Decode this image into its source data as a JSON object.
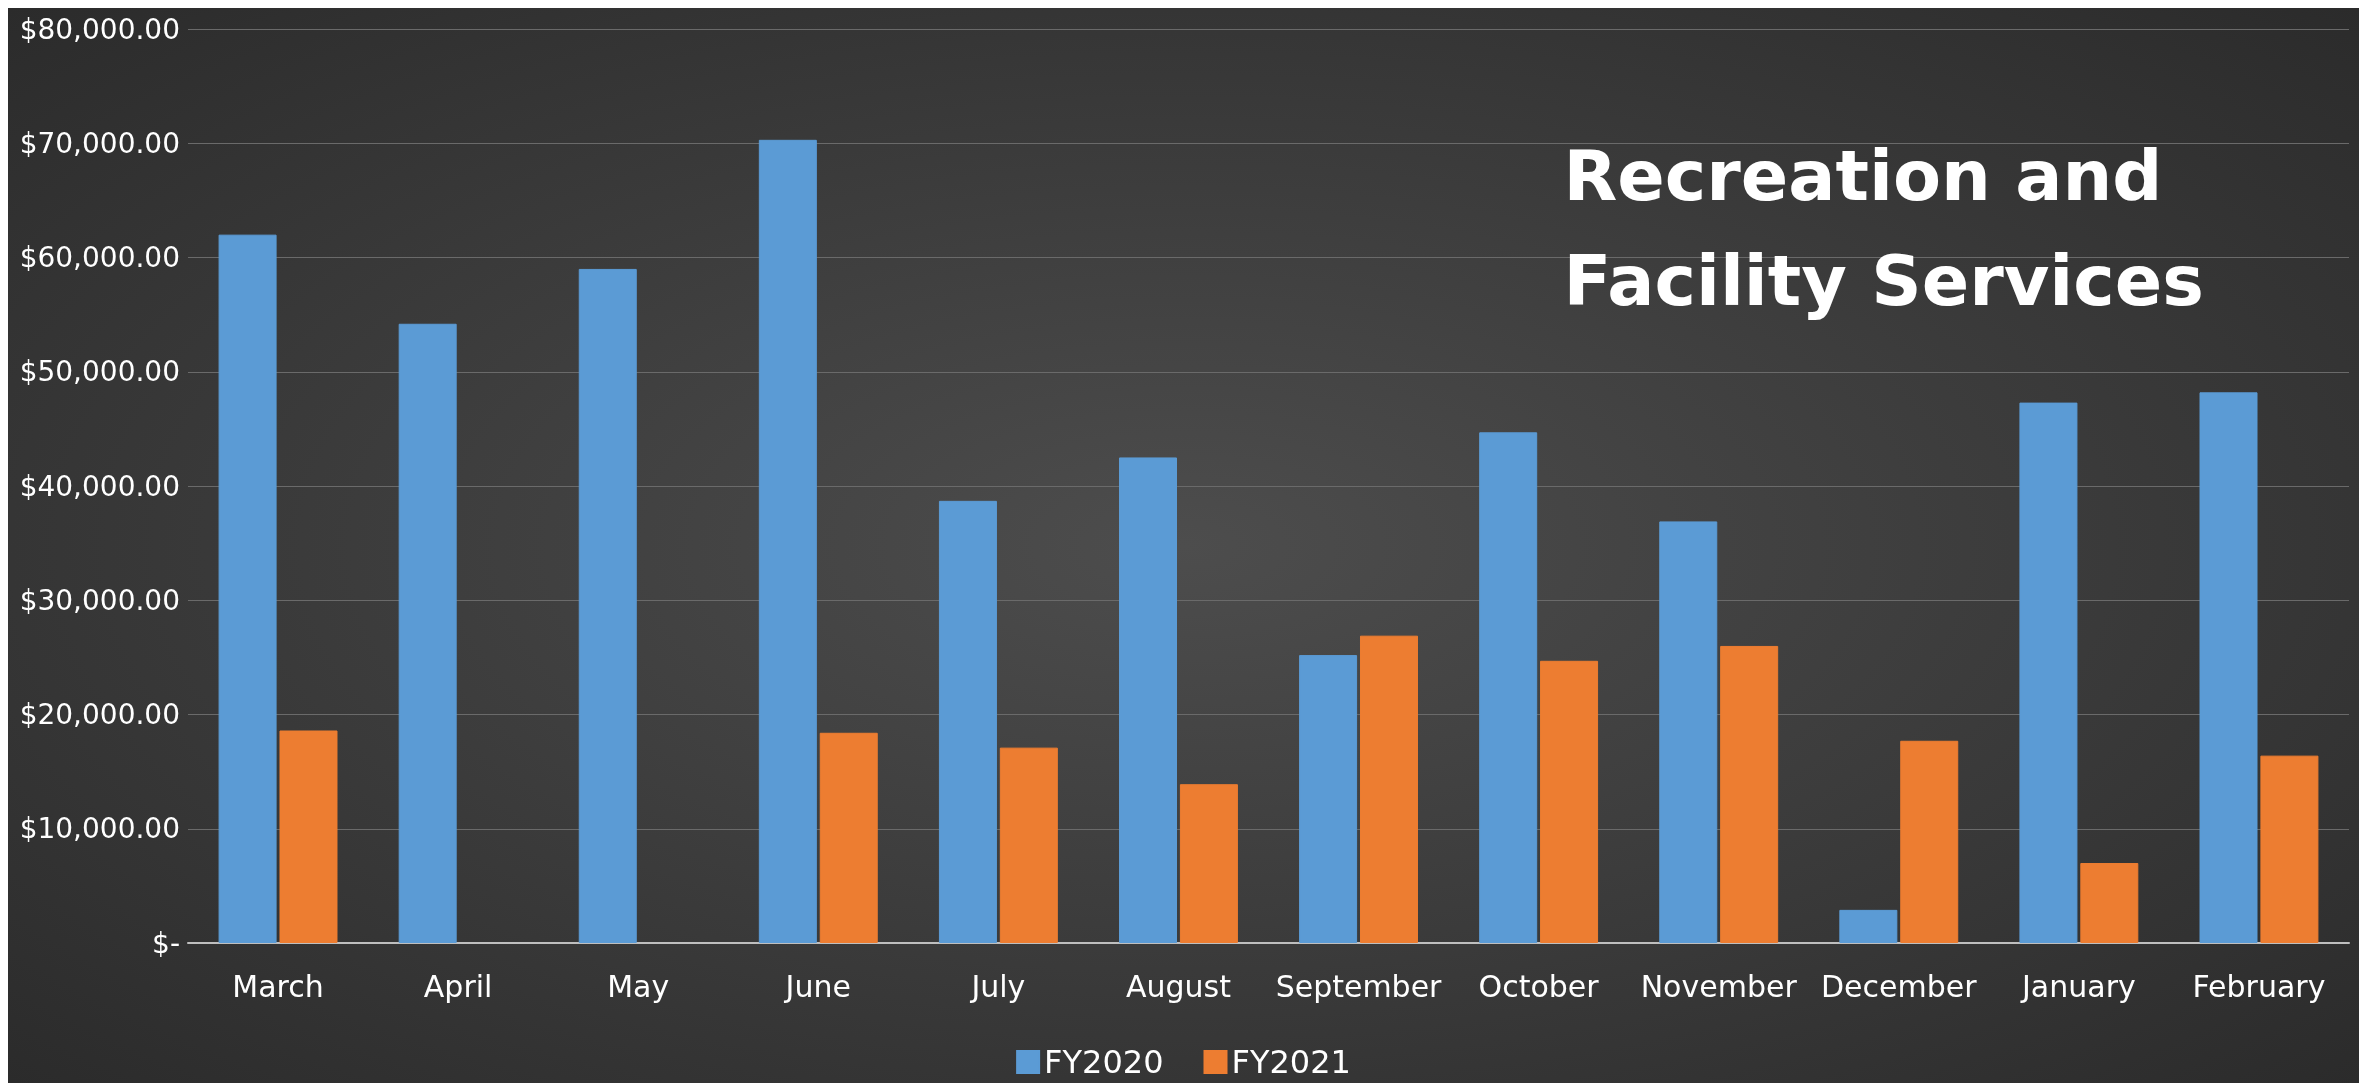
{
  "chart_data": {
    "type": "bar",
    "title": "Recreation and\nFacility Services",
    "categories": [
      "March",
      "April",
      "May",
      "June",
      "July",
      "August",
      "September",
      "October",
      "November",
      "December",
      "January",
      "February"
    ],
    "series": [
      {
        "name": "FY2020",
        "color": "#5b9bd5",
        "values": [
          62000,
          54200,
          59000,
          70300,
          38700,
          42500,
          25200,
          44700,
          36900,
          2900,
          47300,
          48200
        ]
      },
      {
        "name": "FY2021",
        "color": "#ed7d31",
        "values": [
          18600,
          null,
          null,
          18400,
          17100,
          13900,
          26900,
          24700,
          26000,
          17700,
          7000,
          16400
        ]
      }
    ],
    "ylim": [
      0,
      80000
    ],
    "yticks": [
      {
        "value": 0,
        "label": "$-"
      },
      {
        "value": 10000,
        "label": "$10,000.00"
      },
      {
        "value": 20000,
        "label": "$20,000.00"
      },
      {
        "value": 30000,
        "label": "$30,000.00"
      },
      {
        "value": 40000,
        "label": "$40,000.00"
      },
      {
        "value": 50000,
        "label": "$50,000.00"
      },
      {
        "value": 60000,
        "label": "$60,000.00"
      },
      {
        "value": 70000,
        "label": "$70,000.00"
      },
      {
        "value": 80000,
        "label": "$80,000.00"
      }
    ],
    "grid": "y",
    "legend": "bottom"
  }
}
